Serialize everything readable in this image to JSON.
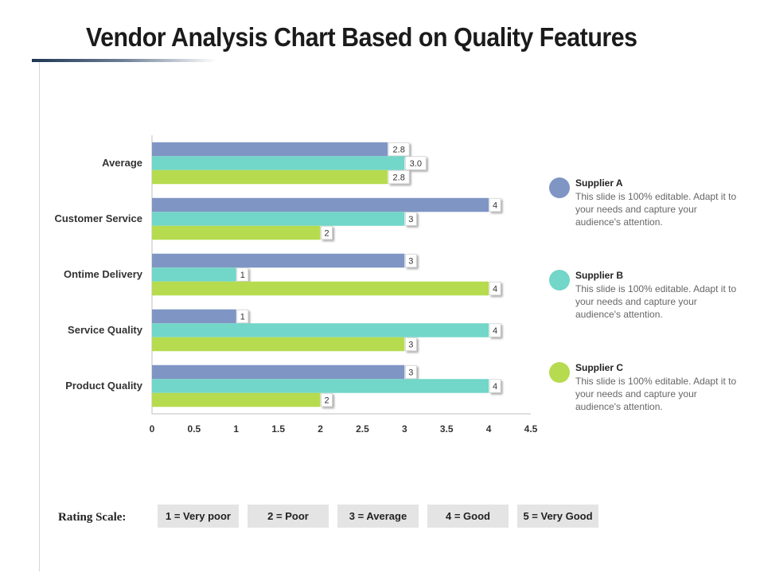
{
  "header": {
    "title": "Vendor Analysis Chart Based on Quality Features"
  },
  "chart_data": {
    "type": "bar",
    "orientation": "horizontal",
    "categories": [
      "Average",
      "Customer Service",
      "Ontime Delivery",
      "Service Quality",
      "Product Quality"
    ],
    "series": [
      {
        "name": "Supplier A",
        "color": "#7f95c4",
        "values": [
          2.8,
          4,
          3,
          1,
          3
        ],
        "labels": [
          "2.8",
          "4",
          "3",
          "1",
          "3"
        ]
      },
      {
        "name": "Supplier B",
        "color": "#72d6c8",
        "values": [
          3.0,
          3,
          1,
          4,
          4
        ],
        "labels": [
          "3.0",
          "3",
          "1",
          "4",
          "4"
        ]
      },
      {
        "name": "Supplier C",
        "color": "#b6db4f",
        "values": [
          2.8,
          2,
          4,
          3,
          2
        ],
        "labels": [
          "2.8",
          "2",
          "4",
          "3",
          "2"
        ]
      }
    ],
    "xlim": [
      0,
      4.5
    ],
    "xticks": [
      "0",
      "0.5",
      "1",
      "1.5",
      "2",
      "2.5",
      "3",
      "3.5",
      "4",
      "4.5"
    ],
    "xlabel": "",
    "ylabel": "",
    "grid": false,
    "legend_position": "right"
  },
  "legend": [
    {
      "name": "Supplier A",
      "color": "#7f95c4",
      "desc": "This slide is 100% editable. Adapt it to your needs and capture your audience's attention."
    },
    {
      "name": "Supplier B",
      "color": "#72d6c8",
      "desc": "This slide is 100% editable. Adapt it to your needs and capture your audience's attention."
    },
    {
      "name": "Supplier C",
      "color": "#b6db4f",
      "desc": "This slide is 100% editable. Adapt it to your needs and capture your audience's attention."
    }
  ],
  "rating": {
    "label": "Rating Scale:",
    "items": [
      "1 = Very poor",
      "2 = Poor",
      "3 = Average",
      "4 = Good",
      "5 = Very Good"
    ]
  }
}
